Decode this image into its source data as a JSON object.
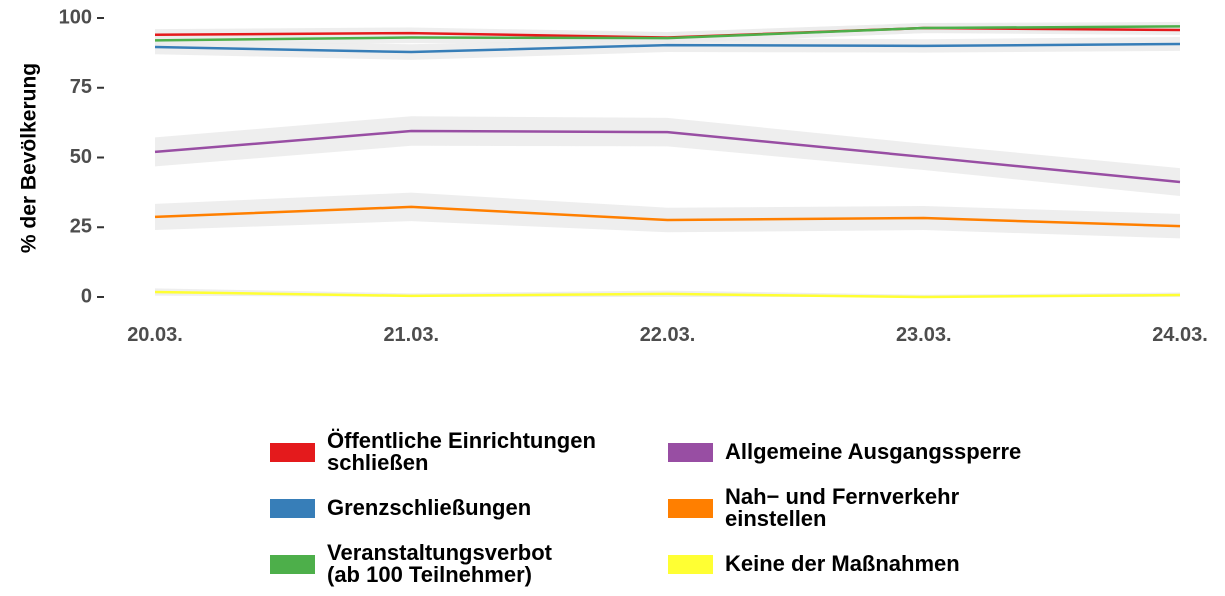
{
  "chart_data": {
    "type": "line",
    "y_label": "% der Bevölkerung",
    "categories": [
      "20.03.",
      "21.03.",
      "22.03.",
      "23.03.",
      "24.03."
    ],
    "ylim": [
      0,
      100
    ],
    "yticks": [
      0,
      25,
      50,
      75,
      100
    ],
    "series": [
      {
        "name": "Öffentliche Einrichtungen\nschließen",
        "color": "#e41a1c",
        "values": [
          94,
          94.6,
          93,
          96.4,
          95.7
        ],
        "ci_lower": [
          92,
          92.6,
          91,
          94.6,
          93.9
        ],
        "ci_upper": [
          96,
          96.6,
          95,
          98.2,
          97.5
        ]
      },
      {
        "name": "Grenzschließungen",
        "color": "#377eb8",
        "values": [
          89.6,
          87.8,
          90.3,
          90,
          90.7
        ],
        "ci_lower": [
          87,
          85,
          87.8,
          87.6,
          88.2
        ],
        "ci_upper": [
          92.2,
          90.6,
          92.8,
          92.4,
          93.2
        ]
      },
      {
        "name": "Veranstaltungsverbot\n(ab 100 Teilnehmer)",
        "color": "#4daf4a",
        "values": [
          92,
          93,
          92.8,
          96.4,
          97
        ],
        "ci_lower": [
          90,
          91,
          90.8,
          94.6,
          95.4
        ],
        "ci_upper": [
          94,
          95,
          94.8,
          98.2,
          98.6
        ]
      },
      {
        "name": "Allgemeine Ausgangssperre",
        "color": "#984ea3",
        "values": [
          52,
          59.5,
          59.1,
          50.2,
          41.2
        ],
        "ci_lower": [
          46.8,
          54.2,
          54,
          45.5,
          36.2
        ],
        "ci_upper": [
          57.2,
          64.8,
          64.2,
          54.9,
          46.2
        ]
      },
      {
        "name": "Nah− und Fernverkehr\neinstellen",
        "color": "#ff7f00",
        "values": [
          28.7,
          32.3,
          27.6,
          28.3,
          25.4
        ],
        "ci_lower": [
          24,
          27.2,
          23.2,
          24,
          21
        ],
        "ci_upper": [
          33.4,
          37.4,
          32,
          32.6,
          29.8
        ]
      },
      {
        "name": "Keine der Maßnahmen",
        "color": "#ffff33",
        "values": [
          1.8,
          0.4,
          1.1,
          0,
          0.7
        ],
        "ci_lower": [
          0.5,
          0,
          0,
          0,
          0
        ],
        "ci_upper": [
          3.1,
          1.3,
          2.3,
          0.8,
          1.6
        ]
      }
    ],
    "ribbon_color": "#ebebeb"
  }
}
